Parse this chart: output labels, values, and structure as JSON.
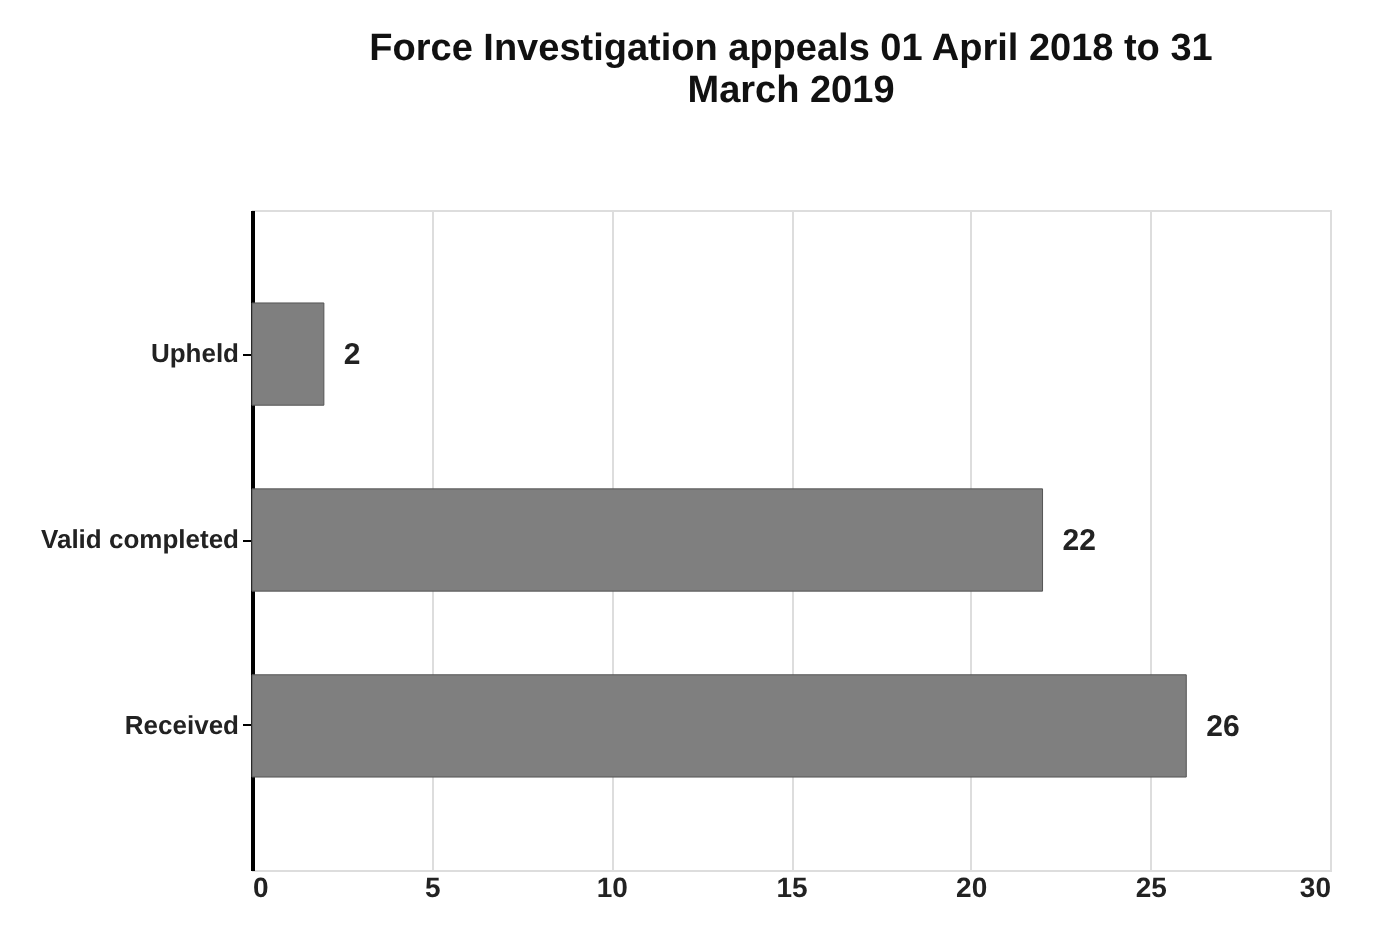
{
  "chart_data": {
    "type": "bar",
    "orientation": "horizontal",
    "title": "Force Investigation appeals 01 April 2018 to 31 March 2019",
    "categories": [
      "Upheld",
      "Valid completed",
      "Received"
    ],
    "values": [
      2,
      22,
      26
    ],
    "color": "#7f7f7f",
    "xlim": [
      0,
      30
    ],
    "xticks": [
      0,
      5,
      10,
      15,
      20,
      25,
      30
    ],
    "grid": "x",
    "data_labels": true
  }
}
